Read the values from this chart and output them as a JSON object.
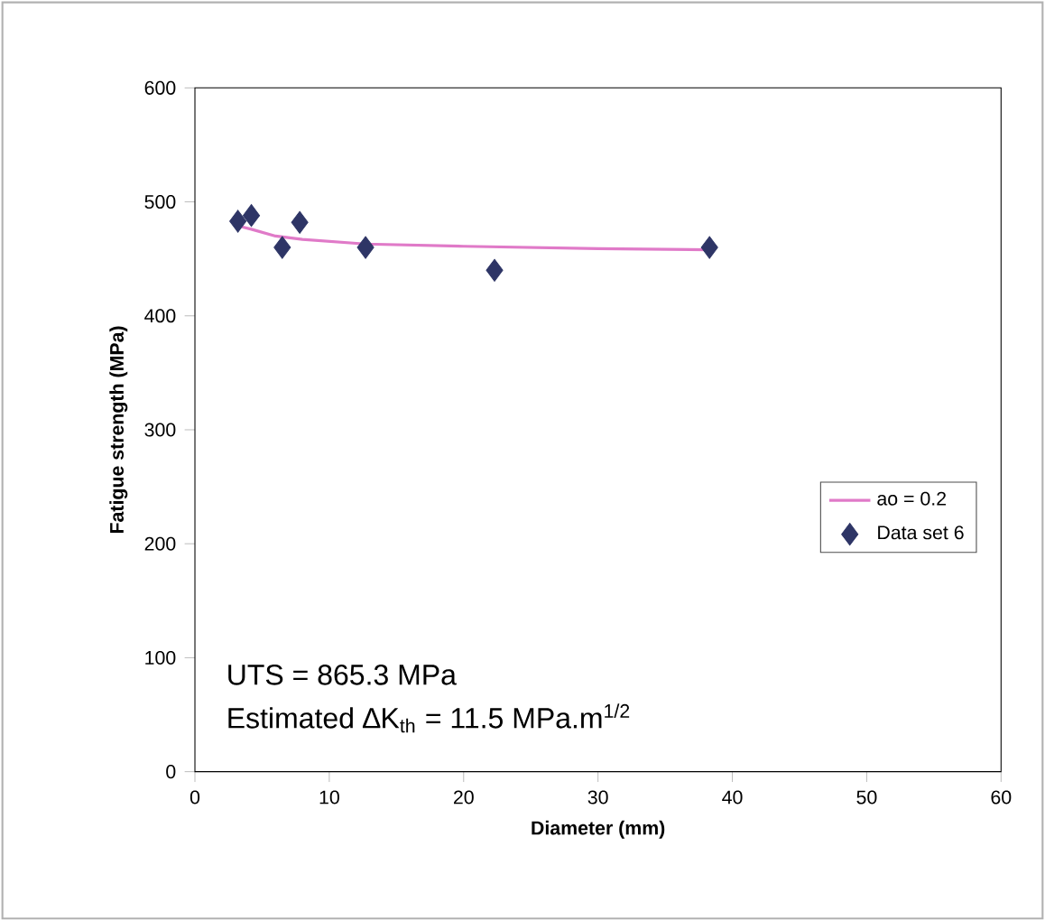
{
  "chart_data": {
    "type": "scatter",
    "xlabel": "Diameter (mm)",
    "ylabel": "Fatigue strength (MPa)",
    "xlim": [
      0,
      60
    ],
    "ylim": [
      0,
      600
    ],
    "xticks": [
      0,
      10,
      20,
      30,
      40,
      50,
      60
    ],
    "yticks": [
      0,
      100,
      200,
      300,
      400,
      500,
      600
    ],
    "grid": false,
    "legend": "right",
    "series": [
      {
        "name": "ao =  0.2",
        "type": "line",
        "color": "#e07ac8",
        "marker": "none",
        "line_style": "solid",
        "x": [
          3.5,
          4.2,
          6,
          8,
          12.7,
          20,
          30,
          38.3
        ],
        "values": [
          478,
          476,
          470,
          467,
          463,
          461,
          459,
          458
        ]
      },
      {
        "name": "Data set 6",
        "color": "#2e3566",
        "marker": "diamond",
        "x": [
          3.2,
          4.2,
          6.5,
          7.8,
          12.7,
          22.3,
          38.3
        ],
        "values": [
          483,
          488,
          460,
          482,
          460,
          440,
          460
        ]
      }
    ],
    "annotations": [
      "UTS = 865.3 MPa",
      "Estimated ∆K$_{th}$ = 11.5 MPa.m$^{1/2}$"
    ]
  }
}
